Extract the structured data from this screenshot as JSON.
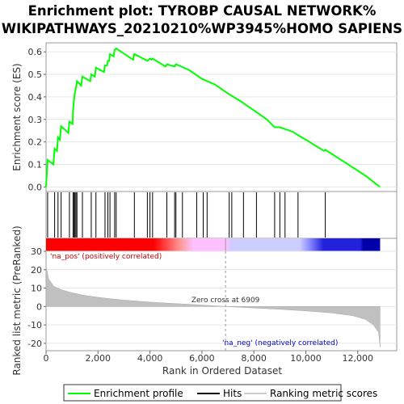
{
  "chart_data": {
    "type": "line",
    "title_line1": "Enrichment plot: TYROBP CAUSAL NETWORK%",
    "title_line2": "WIKIPATHWAYS_20210210%WP3945%HOMO SAPIENS",
    "es_panel": {
      "ylabel": "Enrichment score (ES)",
      "ylim": [
        -0.02,
        0.64
      ],
      "yticks": [
        "0.0",
        "0.1",
        "0.2",
        "0.3",
        "0.4",
        "0.5",
        "0.6"
      ],
      "ytick_values": [
        0.0,
        0.1,
        0.2,
        0.3,
        0.4,
        0.5,
        0.6
      ],
      "line_color": "#00ff00",
      "series_name": "Enrichment profile",
      "points": [
        [
          0,
          0.0
        ],
        [
          60,
          0.12
        ],
        [
          280,
          0.1
        ],
        [
          330,
          0.17
        ],
        [
          420,
          0.16
        ],
        [
          460,
          0.22
        ],
        [
          530,
          0.21
        ],
        [
          580,
          0.27
        ],
        [
          860,
          0.24
        ],
        [
          900,
          0.29
        ],
        [
          1020,
          0.28
        ],
        [
          1040,
          0.34
        ],
        [
          1080,
          0.39
        ],
        [
          1110,
          0.42
        ],
        [
          1150,
          0.44
        ],
        [
          1190,
          0.47
        ],
        [
          1350,
          0.45
        ],
        [
          1400,
          0.49
        ],
        [
          1700,
          0.47
        ],
        [
          1740,
          0.5
        ],
        [
          1880,
          0.49
        ],
        [
          1920,
          0.53
        ],
        [
          2230,
          0.51
        ],
        [
          2270,
          0.54
        ],
        [
          2350,
          0.54
        ],
        [
          2380,
          0.56
        ],
        [
          2430,
          0.56
        ],
        [
          2460,
          0.59
        ],
        [
          2600,
          0.58
        ],
        [
          2640,
          0.61
        ],
        [
          2700,
          0.615
        ],
        [
          3350,
          0.565
        ],
        [
          3400,
          0.59
        ],
        [
          3900,
          0.56
        ],
        [
          4000,
          0.57
        ],
        [
          4060,
          0.565
        ],
        [
          4100,
          0.57
        ],
        [
          4600,
          0.535
        ],
        [
          4650,
          0.545
        ],
        [
          4950,
          0.535
        ],
        [
          5000,
          0.545
        ],
        [
          5500,
          0.52
        ],
        [
          6000,
          0.48
        ],
        [
          6500,
          0.455
        ],
        [
          7000,
          0.415
        ],
        [
          7500,
          0.38
        ],
        [
          8000,
          0.34
        ],
        [
          8500,
          0.3
        ],
        [
          8800,
          0.265
        ],
        [
          9000,
          0.265
        ],
        [
          9500,
          0.245
        ],
        [
          9700,
          0.23
        ],
        [
          10000,
          0.21
        ],
        [
          10700,
          0.16
        ],
        [
          10750,
          0.165
        ],
        [
          11500,
          0.11
        ],
        [
          12300,
          0.05
        ],
        [
          12850,
          0.0
        ]
      ]
    },
    "hits": [
      60,
      330,
      460,
      580,
      900,
      1040,
      1080,
      1110,
      1150,
      1190,
      1400,
      1740,
      1920,
      2270,
      2380,
      2460,
      2640,
      2700,
      3400,
      3900,
      4000,
      4100,
      4650,
      4950,
      5000,
      5250,
      5800,
      6050,
      6200,
      7050,
      7150,
      7600,
      8100,
      8800,
      9000,
      9200,
      9700,
      10750
    ],
    "rank_metric_panel": {
      "ylabel": "Ranked list metric (PreRanked)",
      "ylim": [
        -24,
        30
      ],
      "yticks": [
        "30",
        "20",
        "10",
        "0",
        "-10",
        "-20"
      ],
      "ytick_values": [
        30,
        20,
        10,
        0,
        -10,
        -20
      ],
      "fill_color": "#c0c0c0",
      "curve": [
        [
          0,
          22
        ],
        [
          100,
          15
        ],
        [
          300,
          11
        ],
        [
          600,
          9
        ],
        [
          1000,
          7.5
        ],
        [
          1500,
          6
        ],
        [
          2000,
          5
        ],
        [
          2500,
          4.2
        ],
        [
          3000,
          3.5
        ],
        [
          4000,
          2.4
        ],
        [
          5000,
          1.6
        ],
        [
          6000,
          0.8
        ],
        [
          6909,
          0.0
        ],
        [
          8000,
          -0.8
        ],
        [
          9000,
          -1.5
        ],
        [
          10000,
          -2.4
        ],
        [
          11000,
          -3.5
        ],
        [
          11800,
          -5
        ],
        [
          12300,
          -7
        ],
        [
          12600,
          -10
        ],
        [
          12800,
          -14
        ],
        [
          12860,
          -22
        ]
      ],
      "pos_label": "'na_pos' (positively correlated)",
      "neg_label": "'na_neg' (negatively correlated)",
      "zero_cross_label": "Zero cross at 6909",
      "zero_cross": 6909,
      "pos_label_color": "#cc0000",
      "neg_label_color": "#0000cc"
    },
    "xaxis": {
      "xlabel": "Rank in Ordered Dataset",
      "xlim": [
        0,
        13500
      ],
      "xticks": [
        "0",
        "2,000",
        "4,000",
        "6,000",
        "8,000",
        "10,000",
        "12,000"
      ],
      "xtick_values": [
        0,
        2000,
        4000,
        6000,
        8000,
        10000,
        12000
      ],
      "dataset_size": 12860
    },
    "gradient_colors": [
      "#ff0000",
      "#ff9999",
      "#ffc0ff",
      "#ccccff",
      "#8888ff",
      "#2222dd"
    ],
    "legend": [
      {
        "label": "Enrichment profile",
        "color": "#00ff00"
      },
      {
        "label": "Hits",
        "color": "#000000"
      },
      {
        "label": "Ranking metric scores",
        "color": "#cccccc"
      }
    ]
  }
}
